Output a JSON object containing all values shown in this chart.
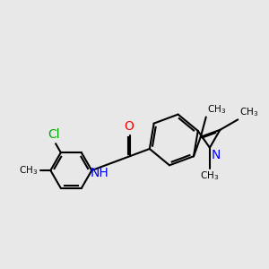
{
  "background_color": "#e8e8e8",
  "bond_color": "#000000",
  "atom_colors": {
    "N": "#0000ff",
    "O": "#ff0000",
    "Cl": "#00aa00",
    "C": "#000000",
    "H": "#000000"
  },
  "line_width": 1.5,
  "font_size": 9,
  "fig_size": [
    3.0,
    3.0
  ],
  "dpi": 100
}
